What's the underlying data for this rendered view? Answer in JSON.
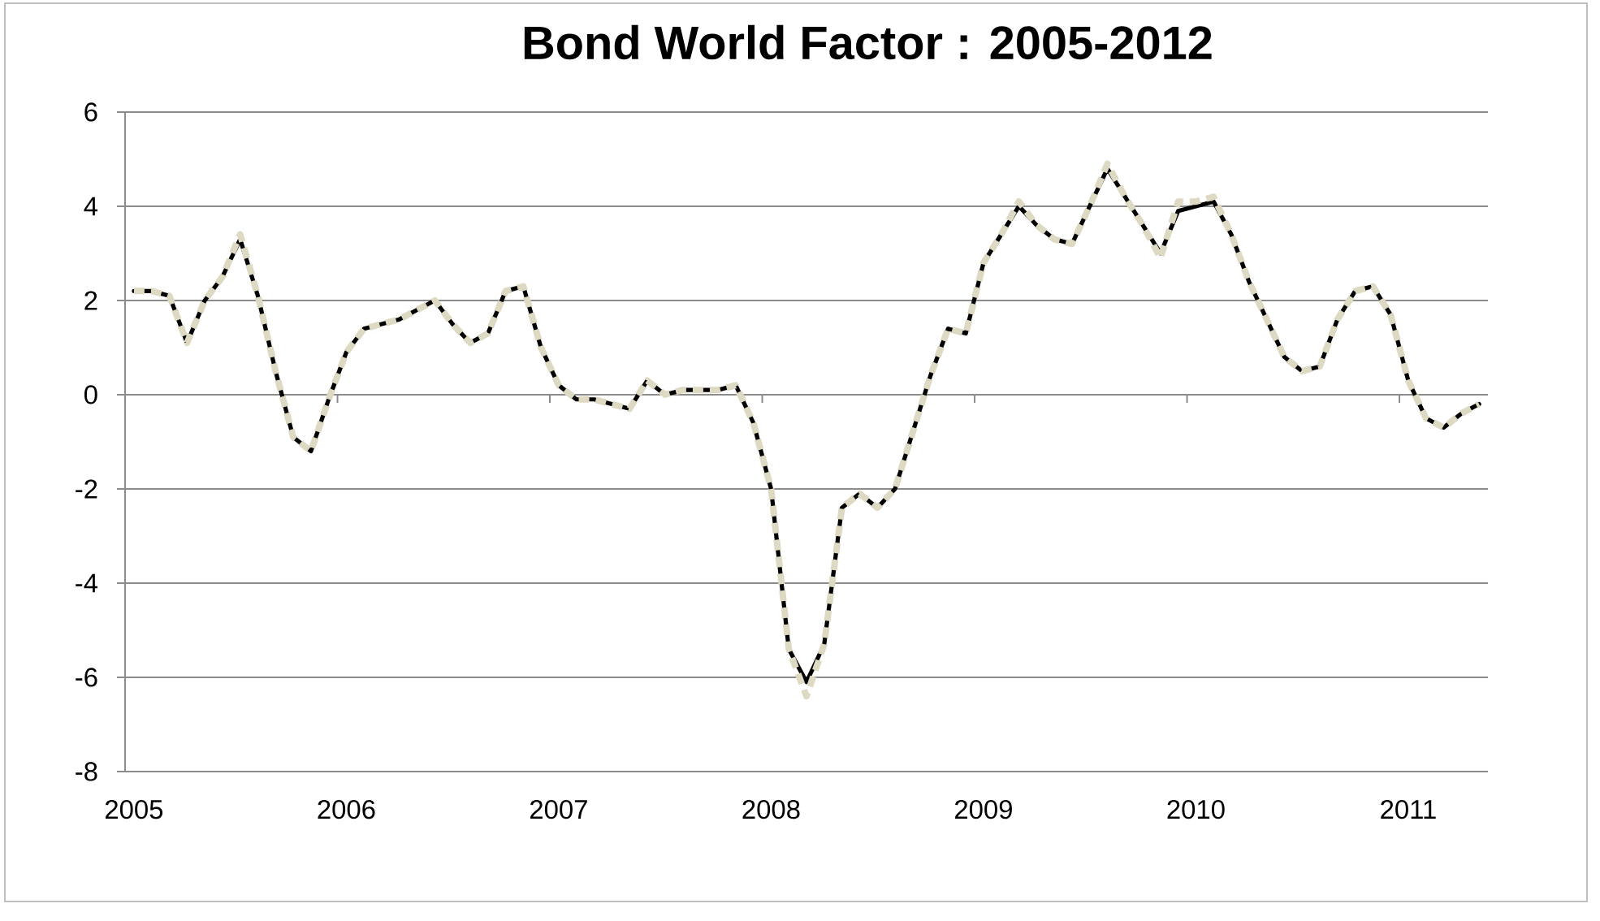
{
  "chart_data": {
    "type": "line",
    "title": "Bond World Factor : 2005-2012",
    "categories": [
      "2005",
      null,
      null,
      null,
      null,
      null,
      null,
      null,
      null,
      null,
      null,
      null,
      "2006",
      null,
      null,
      null,
      null,
      null,
      null,
      null,
      null,
      null,
      null,
      null,
      "2007",
      null,
      null,
      null,
      null,
      null,
      null,
      null,
      null,
      null,
      null,
      null,
      "2008",
      null,
      null,
      null,
      null,
      null,
      null,
      null,
      null,
      null,
      null,
      null,
      "2009",
      null,
      null,
      null,
      null,
      null,
      null,
      null,
      null,
      null,
      null,
      null,
      "2010",
      null,
      null,
      null,
      null,
      null,
      null,
      null,
      null,
      null,
      null,
      null,
      "2011",
      null,
      null,
      null,
      null
    ],
    "series": [
      {
        "color": "#000000",
        "line_style": "solid",
        "values": [
          2.2,
          2.2,
          2.1,
          1.1,
          2.0,
          2.5,
          3.3,
          2.1,
          0.5,
          -0.9,
          -1.2,
          -0.1,
          0.9,
          1.4,
          1.5,
          1.6,
          1.8,
          2.0,
          1.5,
          1.1,
          1.3,
          2.2,
          2.3,
          1.0,
          0.2,
          -0.1,
          -0.1,
          -0.2,
          -0.3,
          0.3,
          0.0,
          0.1,
          0.1,
          0.1,
          0.2,
          -0.6,
          -2.0,
          -5.4,
          -6.1,
          -5.3,
          -2.4,
          -2.1,
          -2.4,
          -2.0,
          -0.8,
          0.4,
          1.4,
          1.3,
          2.8,
          3.4,
          4.0,
          3.6,
          3.3,
          3.2,
          4.0,
          4.8,
          4.2,
          3.6,
          3.0,
          3.9,
          4.0,
          4.1,
          3.4,
          2.4,
          1.6,
          0.8,
          0.5,
          0.6,
          1.6,
          2.2,
          2.3,
          1.7,
          0.3,
          -0.5,
          -0.7,
          -0.4,
          -0.2
        ]
      },
      {
        "color": "#ddd9c3",
        "line_style": "dashed",
        "values": [
          2.2,
          2.2,
          2.1,
          1.1,
          2.0,
          2.5,
          3.4,
          2.1,
          0.5,
          -0.9,
          -1.2,
          -0.1,
          0.9,
          1.4,
          1.5,
          1.6,
          1.8,
          2.0,
          1.5,
          1.1,
          1.3,
          2.2,
          2.3,
          1.0,
          0.2,
          -0.1,
          -0.1,
          -0.2,
          -0.3,
          0.3,
          0.0,
          0.1,
          0.1,
          0.1,
          0.2,
          -0.6,
          -2.0,
          -5.4,
          -6.4,
          -5.3,
          -2.4,
          -2.1,
          -2.4,
          -2.0,
          -0.8,
          0.4,
          1.4,
          1.3,
          2.8,
          3.4,
          4.1,
          3.6,
          3.3,
          3.2,
          4.0,
          4.9,
          4.2,
          3.6,
          2.9,
          4.1,
          4.1,
          4.2,
          3.4,
          2.4,
          1.6,
          0.8,
          0.5,
          0.6,
          1.6,
          2.2,
          2.3,
          1.7,
          0.3,
          -0.5,
          -0.7,
          -0.4,
          -0.2
        ]
      }
    ],
    "ylim": [
      -8,
      6
    ],
    "yticks": [
      -8,
      -6,
      -4,
      -2,
      0,
      2,
      4,
      6
    ],
    "grid": "y",
    "marker": "none"
  }
}
